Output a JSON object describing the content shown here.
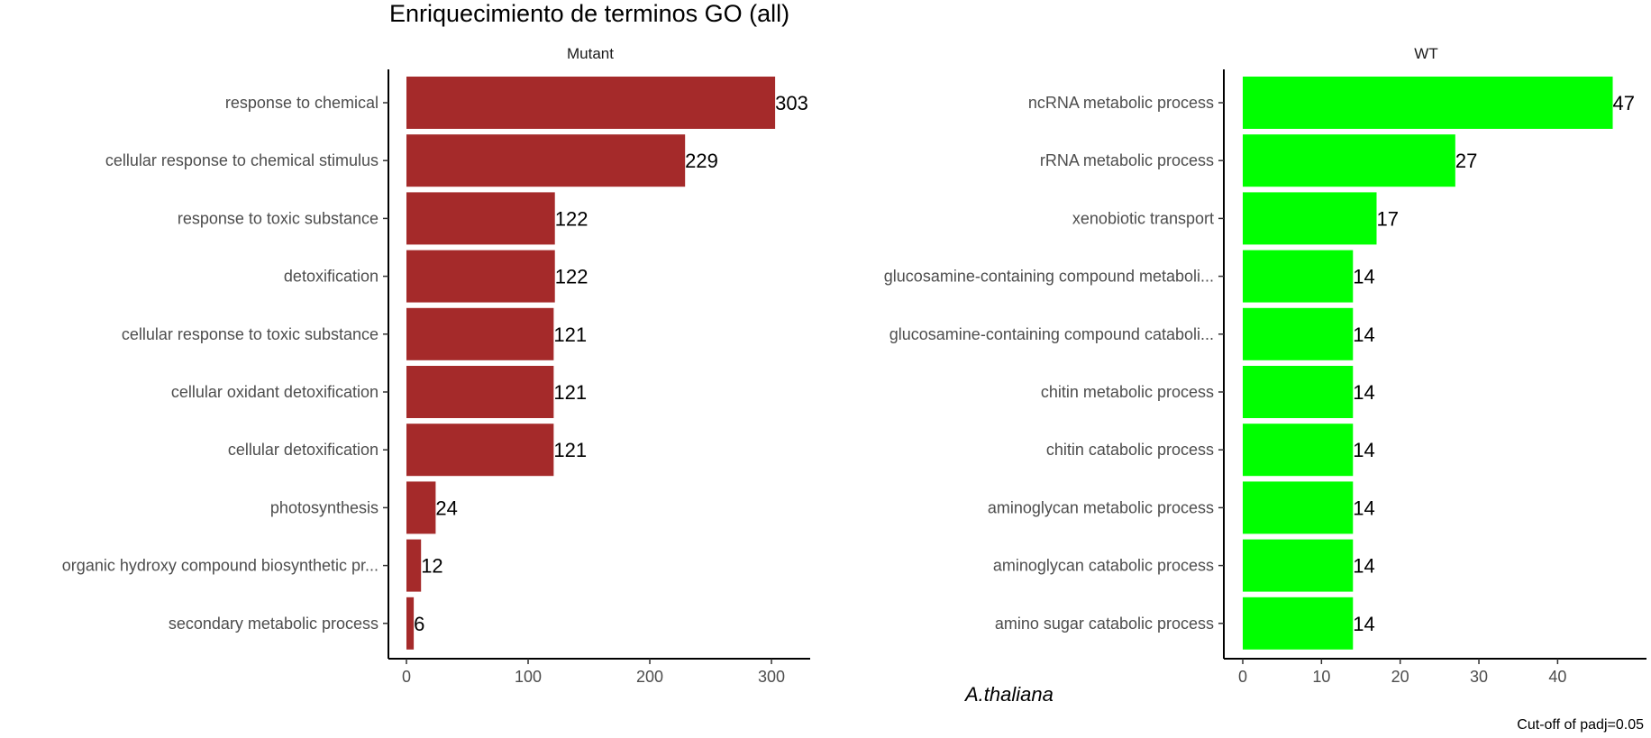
{
  "chart_data": {
    "type": "bar",
    "orientation": "horizontal",
    "title": "Enriquecimiento de terminos GO (all)",
    "xlabel": "A.thaliana",
    "caption": "Cut-off of padj=0.05",
    "grid": false,
    "legend": "none",
    "panels": [
      {
        "name": "Mutant",
        "color": "#A52A2A",
        "xlim": [
          0,
          317
        ],
        "xticks": [
          0,
          100,
          200,
          300
        ],
        "categories": [
          "response to chemical",
          "cellular response to chemical stimulus",
          "response to toxic substance",
          "detoxification",
          "cellular response to toxic substance",
          "cellular oxidant detoxification",
          "cellular detoxification",
          "photosynthesis",
          "organic hydroxy compound biosynthetic pr...",
          "secondary metabolic process"
        ],
        "values": [
          303,
          229,
          122,
          122,
          121,
          121,
          121,
          24,
          12,
          6
        ]
      },
      {
        "name": "WT",
        "color": "#00FF00",
        "xlim": [
          0,
          49
        ],
        "xticks": [
          0,
          10,
          20,
          30,
          40
        ],
        "categories": [
          "ncRNA metabolic process",
          "rRNA metabolic process",
          "xenobiotic transport",
          "glucosamine-containing compound metaboli...",
          "glucosamine-containing compound cataboli...",
          "chitin metabolic process",
          "chitin catabolic process",
          "aminoglycan metabolic process",
          "aminoglycan catabolic process",
          "amino sugar catabolic process"
        ],
        "values": [
          47,
          27,
          17,
          14,
          14,
          14,
          14,
          14,
          14,
          14
        ]
      }
    ]
  }
}
